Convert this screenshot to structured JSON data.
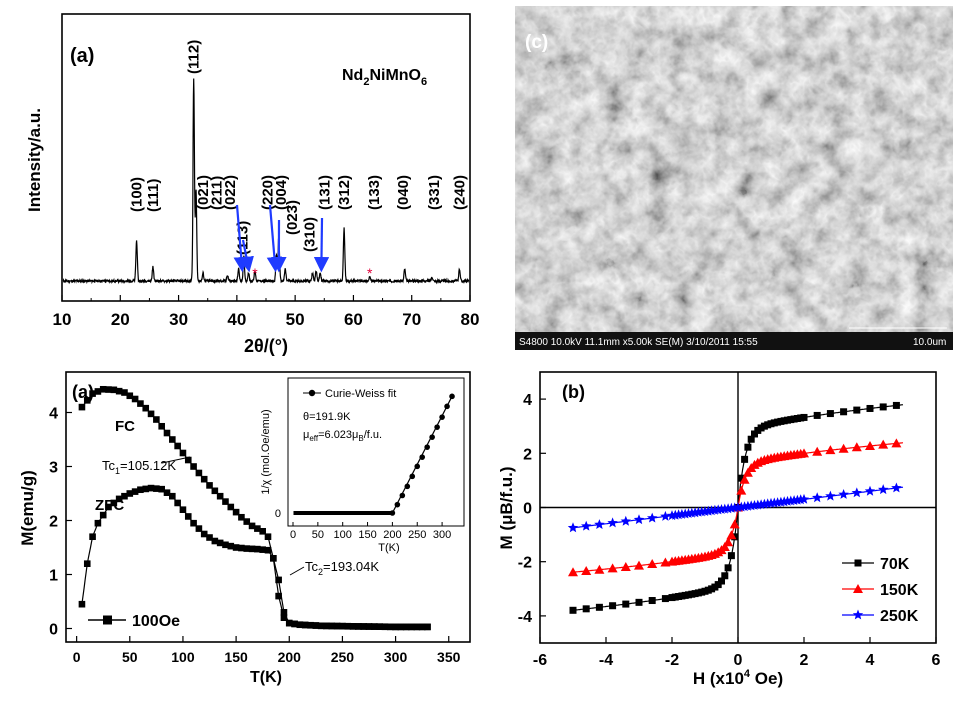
{
  "chart_data": [
    {
      "type": "line",
      "panel_label": "(a)",
      "compound": {
        "main": "Nd",
        "s1": "2",
        "m2": "NiMnO",
        "s2": "6"
      },
      "xlabel": "2θ/(°)",
      "ylabel": "Intensity/a.u.",
      "xlim": [
        10,
        80
      ],
      "xticks": [
        "10",
        "20",
        "30",
        "40",
        "50",
        "60",
        "70",
        "80"
      ],
      "grid": false,
      "peaks": [
        {
          "x": 22.8,
          "h": 0.2
        },
        {
          "x": 25.6,
          "h": 0.07
        },
        {
          "x": 32.6,
          "h": 1.0
        },
        {
          "x": 33.0,
          "h": 0.45
        },
        {
          "x": 34.2,
          "h": 0.04
        },
        {
          "x": 38.4,
          "h": 0.03
        },
        {
          "x": 40.3,
          "h": 0.06
        },
        {
          "x": 41.2,
          "h": 0.12
        },
        {
          "x": 42.0,
          "h": 0.04
        },
        {
          "x": 43.1,
          "h": 0.05
        },
        {
          "x": 46.8,
          "h": 0.13
        },
        {
          "x": 47.2,
          "h": 0.22
        },
        {
          "x": 48.3,
          "h": 0.06
        },
        {
          "x": 53.0,
          "h": 0.04
        },
        {
          "x": 53.6,
          "h": 0.05
        },
        {
          "x": 54.3,
          "h": 0.04
        },
        {
          "x": 58.4,
          "h": 0.26
        },
        {
          "x": 62.8,
          "h": 0.02
        },
        {
          "x": 68.8,
          "h": 0.06
        },
        {
          "x": 73.5,
          "h": 0.02
        },
        {
          "x": 78.2,
          "h": 0.06
        }
      ],
      "hkl_labels": [
        {
          "text": "(100)",
          "x": 22.8
        },
        {
          "text": "(111)",
          "x": 25.6
        },
        {
          "text": "(112)",
          "x": 32.6
        },
        {
          "text": "(021)",
          "x": 34.2
        },
        {
          "text": "(211)",
          "x": 36.5
        },
        {
          "text": "(022)",
          "x": 38.8
        },
        {
          "text": "(113)",
          "x": 41.0
        },
        {
          "text": "(220)",
          "x": 45.3
        },
        {
          "text": "(004)",
          "x": 47.6
        },
        {
          "text": "(023)",
          "x": 49.5
        },
        {
          "text": "(310)",
          "x": 52.5
        },
        {
          "text": "(131)",
          "x": 55.0
        },
        {
          "text": "(312)",
          "x": 58.4
        },
        {
          "text": "(133)",
          "x": 63.5
        },
        {
          "text": "(040)",
          "x": 68.5
        },
        {
          "text": "(331)",
          "x": 73.8
        },
        {
          "text": "(240)",
          "x": 78.2
        }
      ],
      "impurity_marks": [
        {
          "x": 43.1,
          "text": "*"
        },
        {
          "x": 62.8,
          "text": "*"
        }
      ],
      "arrows_to": [
        40.9,
        42.0,
        46.6,
        47.2,
        54.5
      ]
    },
    {
      "type": "image",
      "panel_label": "(c)",
      "caption": "S4800 10.0kV 11.1mm x5.00k SE(M) 3/10/2011 15:55",
      "scale_label": "10.0um"
    },
    {
      "type": "line",
      "panel_label": "(a)",
      "xlabel": "T(K)",
      "ylabel": "M(emu/g)",
      "xlim": [
        -10,
        370
      ],
      "ylim": [
        -0.25,
        4.75
      ],
      "xticks": [
        "0",
        "50",
        "100",
        "150",
        "200",
        "250",
        "300",
        "350"
      ],
      "yticks": [
        "0",
        "1",
        "2",
        "3",
        "4"
      ],
      "grid": false,
      "curve_labels": {
        "fc": "FC",
        "zfc": "ZFC"
      },
      "legend": {
        "label": "100Oe",
        "position": "bottom-left"
      },
      "series": [
        {
          "name": "FC",
          "x": [
            5,
            15,
            25,
            35,
            45,
            55,
            65,
            75,
            85,
            95,
            105,
            115,
            125,
            135,
            145,
            155,
            165,
            175,
            180,
            185,
            190,
            195,
            200,
            210,
            230,
            260,
            300,
            330
          ],
          "y": [
            4.1,
            4.35,
            4.43,
            4.42,
            4.37,
            4.25,
            4.08,
            3.87,
            3.62,
            3.38,
            3.12,
            2.88,
            2.65,
            2.45,
            2.25,
            2.06,
            1.9,
            1.8,
            1.7,
            1.3,
            0.6,
            0.2,
            0.1,
            0.07,
            0.05,
            0.04,
            0.03,
            0.03
          ]
        },
        {
          "name": "ZFC",
          "x": [
            5,
            10,
            15,
            20,
            25,
            30,
            40,
            50,
            60,
            70,
            80,
            90,
            100,
            110,
            120,
            130,
            140,
            150,
            160,
            170,
            180,
            185,
            190,
            195,
            200,
            210,
            230,
            260,
            300,
            330
          ],
          "y": [
            0.45,
            1.2,
            1.7,
            1.95,
            2.1,
            2.25,
            2.4,
            2.5,
            2.57,
            2.6,
            2.58,
            2.45,
            2.2,
            1.95,
            1.75,
            1.62,
            1.55,
            1.5,
            1.48,
            1.47,
            1.45,
            1.3,
            0.9,
            0.3,
            0.1,
            0.07,
            0.05,
            0.04,
            0.03,
            0.03
          ]
        }
      ],
      "annotations": {
        "tc1": {
          "pre": "Tc",
          "sub": "1",
          "post": "=105.12K",
          "x": 100,
          "y": 3.3
        },
        "tc2": {
          "pre": "Tc",
          "sub": "2",
          "post": "=193.04K",
          "x": 193,
          "y": 0.95
        }
      },
      "inset": {
        "xlabel": "T(K)",
        "ylabel": "1/χ (mol.Oe/emu)",
        "xlim": [
          0,
          330
        ],
        "xticks": [
          "0",
          "50",
          "100",
          "150",
          "200",
          "250",
          "300"
        ],
        "ytick": "0",
        "legend": "Curie-Weiss fit",
        "theta_text": "θ=191.9K",
        "mu": {
          "pre": "μ",
          "sub": "eff",
          "mid": "=6.023μ",
          "sub2": "B",
          "post": "/f.u."
        },
        "points": {
          "x": [
            200,
            210,
            220,
            230,
            240,
            250,
            260,
            270,
            280,
            290,
            300,
            310,
            320
          ],
          "y": [
            0,
            10,
            21,
            32,
            44,
            56,
            67,
            79,
            91,
            103,
            115,
            128,
            140
          ]
        },
        "flat_to": 195
      }
    },
    {
      "type": "line",
      "panel_label": "(b)",
      "xlabel": "H (x10",
      "xlabel_sup": "4",
      "xlabel_end": " Oe)",
      "ylabel": "M (μB/f.u.)",
      "xlim": [
        -6,
        6
      ],
      "ylim": [
        -5,
        5
      ],
      "xticks": [
        "-6",
        "-4",
        "-2",
        "0",
        "2",
        "4",
        "6"
      ],
      "yticks": [
        "-4",
        "-2",
        "0",
        "2",
        "4"
      ],
      "grid": false,
      "legend": {
        "position": "bottom-right"
      },
      "series": [
        {
          "name": "70K",
          "color": "#000000",
          "marker": "square",
          "ms": 2.9,
          "a": 0.9,
          "b": 0.2
        },
        {
          "name": "150K",
          "color": "#ff0000",
          "marker": "triangle",
          "ms": 1.65,
          "a": 0.7,
          "b": 0.17
        },
        {
          "name": "250K",
          "color": "#0000ff",
          "marker": "star",
          "ms": 0,
          "a": 0,
          "b": 0.15
        }
      ]
    }
  ]
}
